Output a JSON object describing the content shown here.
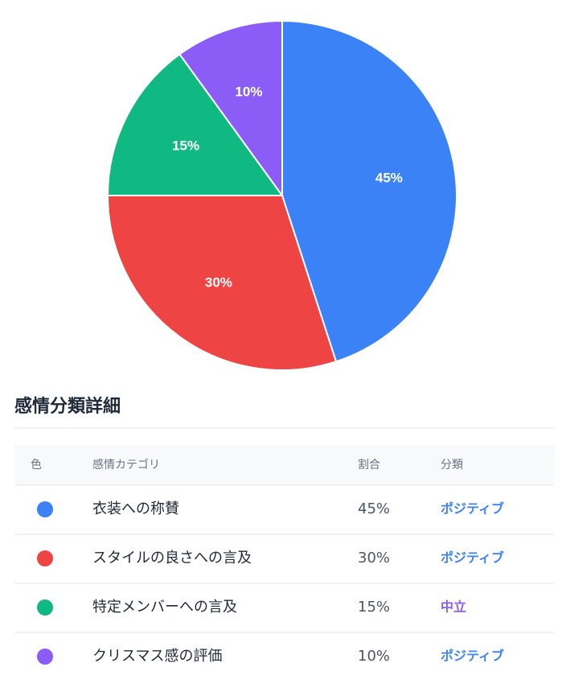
{
  "chart_data": {
    "type": "pie",
    "categories": [
      "衣装への称賛",
      "スタイルの良さへの言及",
      "特定メンバーへの言及",
      "クリスマス感の評価"
    ],
    "values": [
      45,
      30,
      15,
      10
    ],
    "value_labels": [
      "45%",
      "30%",
      "15%",
      "10%"
    ],
    "colors": [
      "#3b82f6",
      "#ef4444",
      "#10b981",
      "#8b5cf6"
    ]
  },
  "table": {
    "title": "感情分類詳細",
    "headers": [
      "色",
      "感情カテゴリ",
      "割合",
      "分類"
    ],
    "rows": [
      {
        "category": "衣装への称賛",
        "share": "45%",
        "class": "ポジティブ",
        "class_color": "#3b82f6"
      },
      {
        "category": "スタイルの良さへの言及",
        "share": "30%",
        "class": "ポジティブ",
        "class_color": "#3b82f6"
      },
      {
        "category": "特定メンバーへの言及",
        "share": "15%",
        "class": "中立",
        "class_color": "#8b5cf6"
      },
      {
        "category": "クリスマス感の評価",
        "share": "10%",
        "class": "ポジティブ",
        "class_color": "#3b82f6"
      }
    ]
  }
}
